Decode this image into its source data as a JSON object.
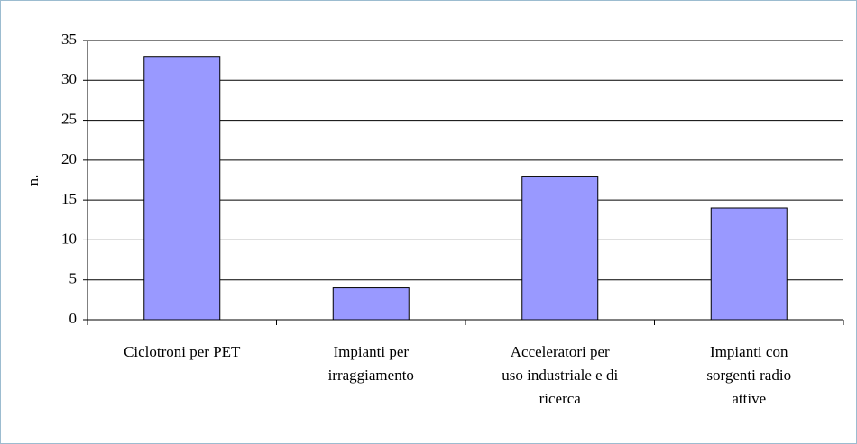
{
  "chart_data": {
    "type": "bar",
    "y_label": "n.",
    "categories": [
      "Ciclotroni per PET",
      "Impianti per irraggiamento",
      "Acceleratori per uso industriale e di ricerca",
      "Impianti con sorgenti radio attive"
    ],
    "values": [
      33,
      4,
      18,
      14
    ],
    "color": "#9999ff",
    "ylim": [
      0,
      35
    ],
    "yticks": [
      0,
      5,
      10,
      15,
      20,
      25,
      30,
      35
    ],
    "grid": true
  }
}
